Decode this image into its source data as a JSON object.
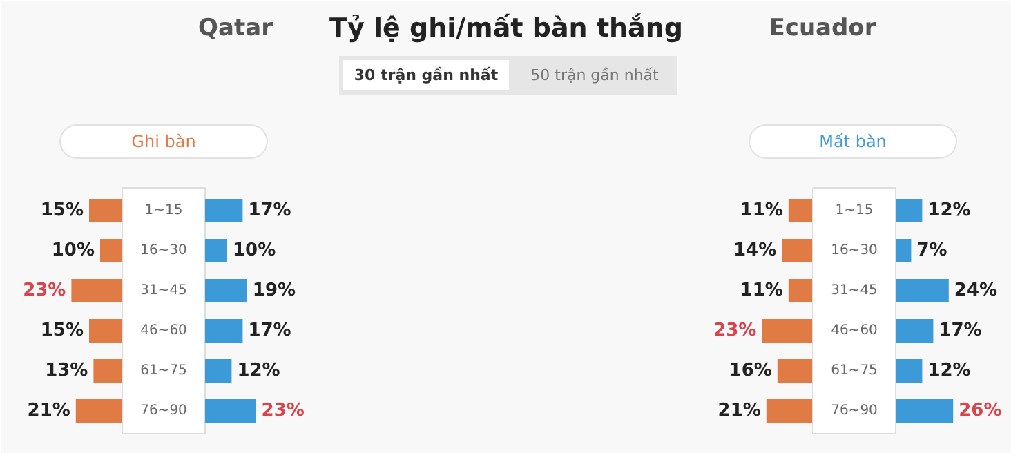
{
  "chart_data": [
    {
      "type": "other",
      "title": "Tỷ lệ ghi/mất bàn thắng",
      "annotations": [
        "Qatar",
        "Ecuador",
        "30 trận gần nhất",
        "50 trận gần nhất"
      ]
    },
    {
      "type": "bar",
      "orientation": "horizontal",
      "categories": [
        "1~15",
        "16~30",
        "31~45",
        "46~60",
        "61~75",
        "76~90"
      ],
      "tick_labels": "y",
      "series": [
        {
          "name": "Ghi bàn",
          "color": "#e07b45",
          "values": [
            15,
            10,
            23,
            15,
            13,
            21
          ],
          "value_labels": [
            "15%",
            "10%",
            "23%",
            "15%",
            "13%",
            "21%"
          ]
        }
      ]
    },
    {
      "type": "bar",
      "orientation": "horizontal",
      "categories": [
        null,
        null,
        null,
        null,
        null,
        null
      ],
      "series": [
        {
          "color": "#3d9ad8",
          "values": [
            17,
            10,
            19,
            17,
            12,
            23
          ],
          "value_labels": [
            "17%",
            "10%",
            "19%",
            "17%",
            "12%",
            "23%"
          ]
        }
      ]
    },
    {
      "type": "bar",
      "orientation": "horizontal",
      "categories": [
        null,
        null,
        null,
        null,
        null,
        null
      ],
      "series": [
        {
          "color": "#e07b45",
          "values": [
            11,
            14,
            11,
            23,
            16,
            21
          ],
          "value_labels": [
            "11%",
            "14%",
            "11%",
            "23%",
            "16%",
            "21%"
          ]
        }
      ]
    },
    {
      "type": "bar",
      "orientation": "horizontal",
      "categories": [
        "1~15",
        "16~30",
        "31~45",
        "46~60",
        "61~75",
        "76~90"
      ],
      "tick_labels": "y",
      "series": [
        {
          "name": "Mất bàn",
          "color": "#3d9ad8",
          "values": [
            12,
            7,
            24,
            17,
            12,
            26
          ],
          "value_labels": [
            "12%",
            "7%",
            "24%",
            "17%",
            "12%",
            "26%"
          ]
        }
      ]
    }
  ]
}
